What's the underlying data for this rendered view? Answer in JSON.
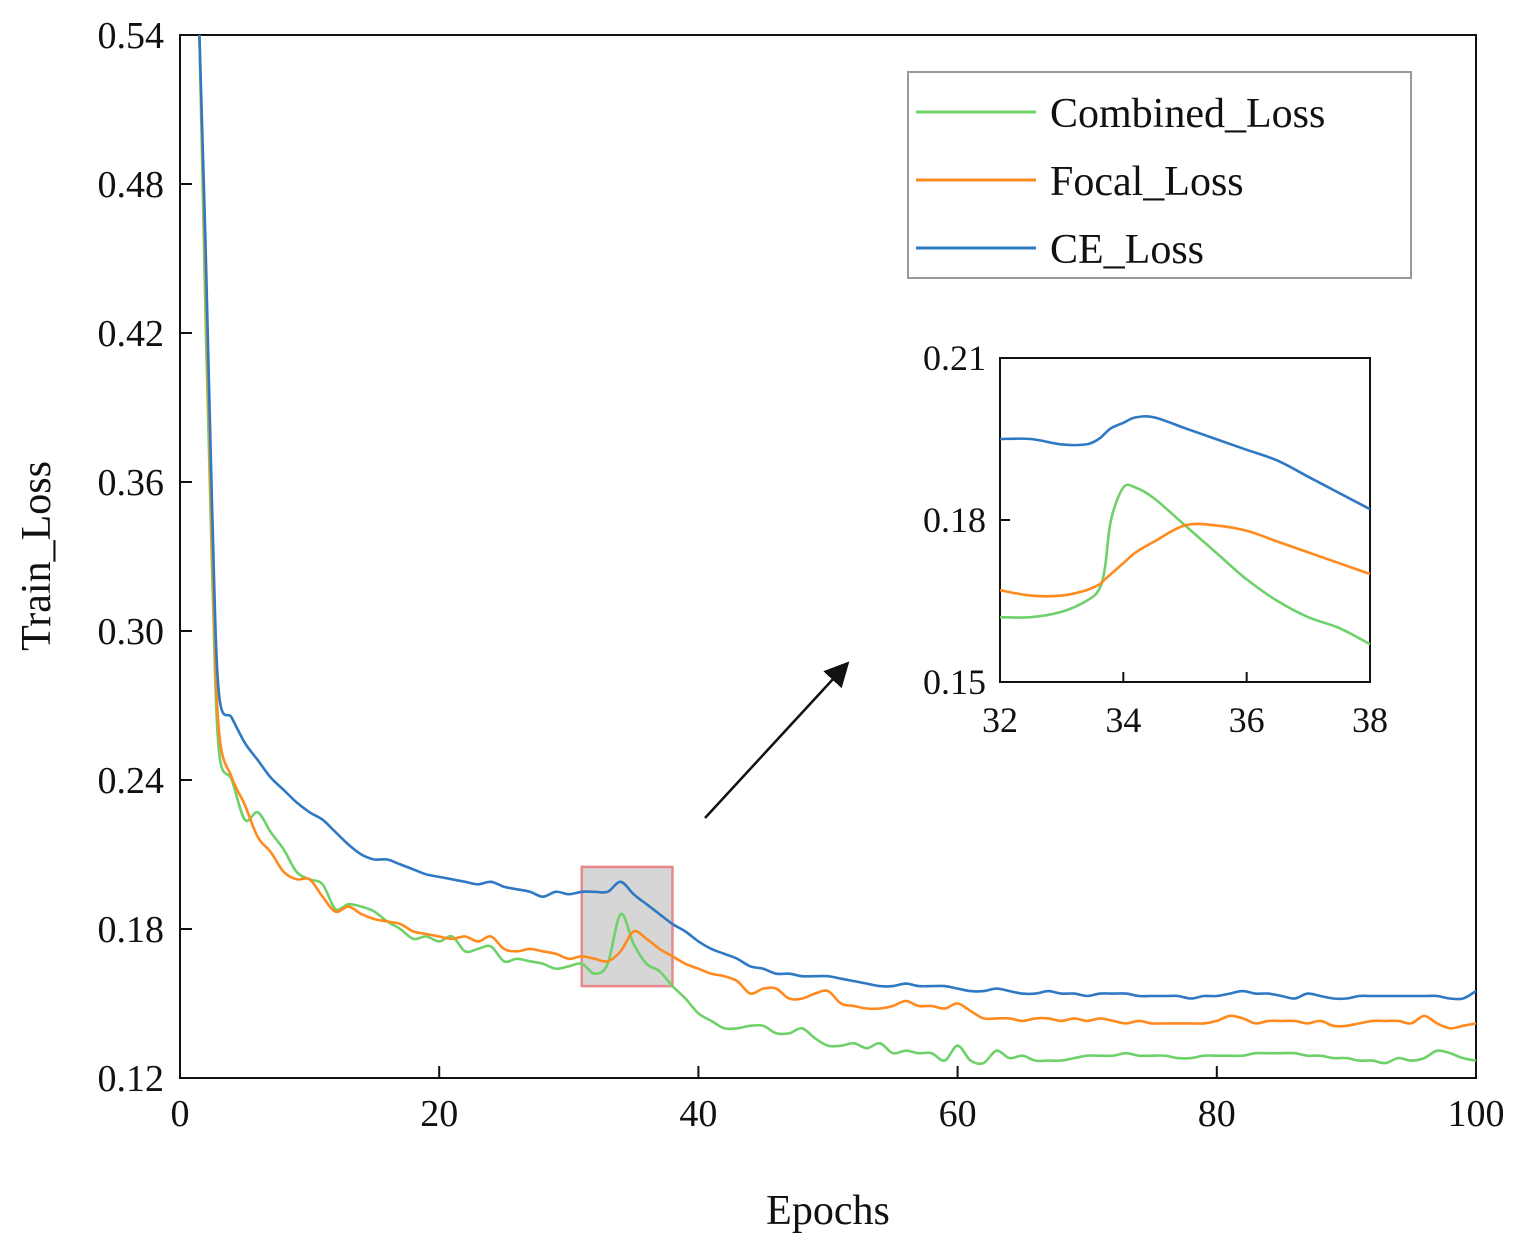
{
  "chart_data": {
    "type": "line",
    "title": "",
    "xlabel": "Epochs",
    "ylabel": "Train_Loss",
    "xlim": [
      0,
      100
    ],
    "ylim": [
      0.12,
      0.54
    ],
    "xticks": [
      "0",
      "20",
      "40",
      "60",
      "80",
      "100"
    ],
    "yticks": [
      "0.12",
      "0.18",
      "0.24",
      "0.30",
      "0.36",
      "0.42",
      "0.48",
      "0.54"
    ],
    "legend_position": "top-right",
    "grid": false,
    "x": [
      1.5,
      2,
      2.5,
      3,
      4,
      5,
      6,
      7,
      8,
      9,
      10,
      11,
      12,
      13,
      14,
      15,
      16,
      17,
      18,
      19,
      20,
      21,
      22,
      23,
      24,
      25,
      26,
      27,
      28,
      29,
      30,
      31,
      32,
      33,
      34,
      35,
      36,
      37,
      38,
      39,
      40,
      41,
      42,
      43,
      44,
      45,
      46,
      47,
      48,
      49,
      50,
      51,
      52,
      53,
      54,
      55,
      56,
      57,
      58,
      59,
      60,
      61,
      62,
      63,
      64,
      65,
      66,
      67,
      68,
      69,
      70,
      71,
      72,
      73,
      74,
      75,
      76,
      77,
      78,
      79,
      80,
      81,
      82,
      83,
      84,
      85,
      86,
      87,
      88,
      89,
      90,
      91,
      92,
      93,
      94,
      95,
      96,
      97,
      98,
      99,
      100
    ],
    "series": [
      {
        "name": "Combined_Loss",
        "color": "#6fd16a",
        "values": [
          0.54,
          0.42,
          0.32,
          0.252,
          0.24,
          0.224,
          0.227,
          0.219,
          0.212,
          0.203,
          0.2,
          0.198,
          0.188,
          0.19,
          0.189,
          0.187,
          0.183,
          0.18,
          0.176,
          0.177,
          0.175,
          0.177,
          0.171,
          0.172,
          0.173,
          0.167,
          0.168,
          0.167,
          0.166,
          0.164,
          0.165,
          0.166,
          0.162,
          0.166,
          0.186,
          0.174,
          0.166,
          0.163,
          0.157,
          0.152,
          0.146,
          0.143,
          0.14,
          0.14,
          0.141,
          0.141,
          0.138,
          0.138,
          0.14,
          0.136,
          0.133,
          0.133,
          0.134,
          0.132,
          0.134,
          0.13,
          0.131,
          0.13,
          0.13,
          0.127,
          0.133,
          0.127,
          0.126,
          0.131,
          0.128,
          0.129,
          0.127,
          0.127,
          0.127,
          0.128,
          0.129,
          0.129,
          0.129,
          0.13,
          0.129,
          0.129,
          0.129,
          0.128,
          0.128,
          0.129,
          0.129,
          0.129,
          0.129,
          0.13,
          0.13,
          0.13,
          0.13,
          0.129,
          0.129,
          0.128,
          0.128,
          0.127,
          0.127,
          0.126,
          0.128,
          0.127,
          0.128,
          0.131,
          0.13,
          0.128,
          0.127
        ]
      },
      {
        "name": "Focal_Loss",
        "color": "#ff8a1e",
        "values": [
          0.54,
          0.44,
          0.33,
          0.26,
          0.241,
          0.23,
          0.217,
          0.211,
          0.203,
          0.2,
          0.2,
          0.193,
          0.187,
          0.189,
          0.186,
          0.184,
          0.183,
          0.182,
          0.179,
          0.178,
          0.177,
          0.176,
          0.177,
          0.175,
          0.177,
          0.172,
          0.171,
          0.172,
          0.171,
          0.17,
          0.168,
          0.169,
          0.168,
          0.167,
          0.171,
          0.179,
          0.176,
          0.172,
          0.169,
          0.166,
          0.164,
          0.162,
          0.161,
          0.159,
          0.154,
          0.156,
          0.156,
          0.152,
          0.152,
          0.154,
          0.155,
          0.15,
          0.149,
          0.148,
          0.148,
          0.149,
          0.151,
          0.149,
          0.149,
          0.148,
          0.15,
          0.147,
          0.144,
          0.144,
          0.144,
          0.143,
          0.144,
          0.144,
          0.143,
          0.144,
          0.143,
          0.144,
          0.143,
          0.142,
          0.143,
          0.142,
          0.142,
          0.142,
          0.142,
          0.142,
          0.143,
          0.145,
          0.144,
          0.142,
          0.143,
          0.143,
          0.143,
          0.142,
          0.143,
          0.141,
          0.141,
          0.142,
          0.143,
          0.143,
          0.143,
          0.142,
          0.145,
          0.142,
          0.14,
          0.141,
          0.142
        ]
      },
      {
        "name": "CE_Loss",
        "color": "#2f78c4",
        "values": [
          0.54,
          0.45,
          0.345,
          0.275,
          0.265,
          0.255,
          0.248,
          0.241,
          0.236,
          0.231,
          0.227,
          0.224,
          0.219,
          0.214,
          0.21,
          0.208,
          0.208,
          0.206,
          0.204,
          0.202,
          0.201,
          0.2,
          0.199,
          0.198,
          0.199,
          0.197,
          0.196,
          0.195,
          0.193,
          0.195,
          0.194,
          0.195,
          0.195,
          0.195,
          0.199,
          0.194,
          0.19,
          0.186,
          0.182,
          0.179,
          0.175,
          0.172,
          0.17,
          0.168,
          0.165,
          0.164,
          0.162,
          0.162,
          0.161,
          0.161,
          0.161,
          0.16,
          0.159,
          0.158,
          0.157,
          0.157,
          0.158,
          0.157,
          0.157,
          0.157,
          0.156,
          0.155,
          0.155,
          0.156,
          0.155,
          0.154,
          0.154,
          0.155,
          0.154,
          0.154,
          0.153,
          0.154,
          0.154,
          0.154,
          0.153,
          0.153,
          0.153,
          0.153,
          0.152,
          0.153,
          0.153,
          0.154,
          0.155,
          0.154,
          0.154,
          0.153,
          0.152,
          0.154,
          0.153,
          0.152,
          0.152,
          0.153,
          0.153,
          0.153,
          0.153,
          0.153,
          0.153,
          0.153,
          0.152,
          0.152,
          0.155
        ]
      }
    ],
    "zoom_region": {
      "xlim": [
        31,
        38
      ],
      "ylim": [
        0.157,
        0.205
      ]
    },
    "inset": {
      "type": "line",
      "xlim": [
        32,
        38
      ],
      "ylim": [
        0.15,
        0.21
      ],
      "xticks": [
        "32",
        "34",
        "36",
        "38"
      ],
      "yticks": [
        "0.15",
        "0.18",
        "0.21"
      ],
      "x": [
        32,
        32.5,
        33,
        33.4,
        33.6,
        33.7,
        33.8,
        34,
        34.2,
        34.5,
        35,
        35.5,
        36,
        36.5,
        37,
        37.5,
        38
      ],
      "series": [
        {
          "name": "Combined_Loss",
          "values": [
            0.162,
            0.162,
            0.163,
            0.165,
            0.167,
            0.171,
            0.18,
            0.186,
            0.186,
            0.184,
            0.179,
            0.174,
            0.169,
            0.165,
            0.162,
            0.16,
            0.157
          ]
        },
        {
          "name": "Focal_Loss",
          "values": [
            0.167,
            0.166,
            0.166,
            0.167,
            0.168,
            0.169,
            0.17,
            0.172,
            0.174,
            0.176,
            0.179,
            0.179,
            0.178,
            0.176,
            0.174,
            0.172,
            0.17
          ]
        },
        {
          "name": "CE_Loss",
          "values": [
            0.195,
            0.195,
            0.194,
            0.194,
            0.195,
            0.196,
            0.197,
            0.198,
            0.199,
            0.199,
            0.197,
            0.195,
            0.193,
            0.191,
            0.188,
            0.185,
            0.182
          ]
        }
      ]
    }
  }
}
